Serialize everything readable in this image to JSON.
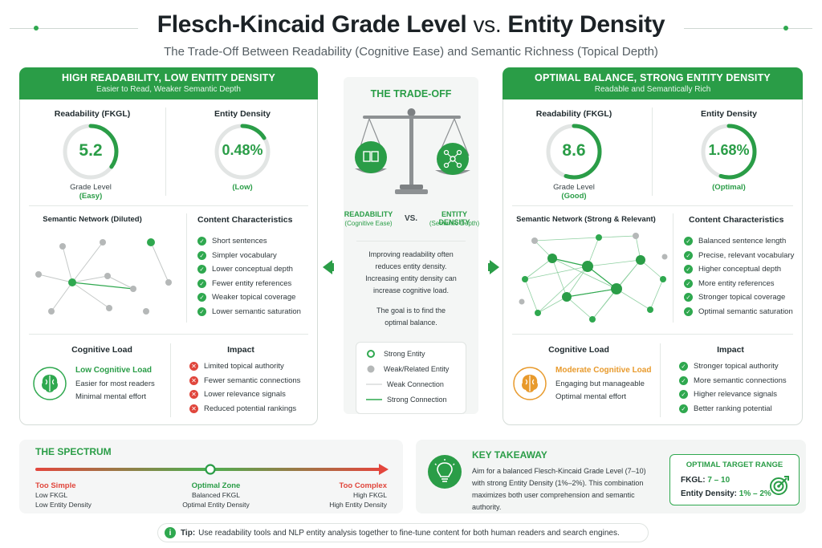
{
  "header": {
    "title_main": "Flesch-Kincaid Grade Level",
    "title_vs": "vs.",
    "title_end": "Entity Density",
    "subtitle": "The Trade-Off Between Readability (Cognitive Ease) and Semantic Richness (Topical Depth)"
  },
  "left_panel": {
    "title": "HIGH READABILITY, LOW ENTITY DENSITY",
    "subtitle": "Easier to Read, Weaker Semantic Depth",
    "readability": {
      "label": "Readability (FKGL)",
      "value": "5.2",
      "caption": "Grade Level",
      "rating": "(Easy)",
      "fill": 0.35
    },
    "density": {
      "label": "Entity Density",
      "value": "0.48%",
      "rating": "(Low)",
      "fill": 0.16
    },
    "network_title": "Semantic Network (Diluted)",
    "characteristics_title": "Content Characteristics",
    "characteristics": [
      "Short sentences",
      "Simpler vocabulary",
      "Lower conceptual depth",
      "Fewer entity references",
      "Weaker topical coverage",
      "Lower semantic saturation"
    ],
    "cognitive_title": "Cognitive Load",
    "cognitive_level": "Low Cognitive Load",
    "cognitive_lines": [
      "Easier for most readers",
      "Minimal mental effort"
    ],
    "impact_title": "Impact",
    "impact": [
      "Limited topical authority",
      "Fewer semantic connections",
      "Lower relevance signals",
      "Reduced potential rankings"
    ]
  },
  "center": {
    "title": "THE TRADE-OFF",
    "left_label": "READABILITY",
    "left_sub": "(Cognitive Ease)",
    "vs": "VS.",
    "right_label": "ENTITY DENSITY",
    "right_sub": "(Semantic Depth)",
    "text_lines": [
      "Improving readability often",
      "reduces entity density.",
      "Increasing entity density can",
      "increase cognitive load."
    ],
    "goal_lines": [
      "The goal is to find the",
      "optimal balance."
    ],
    "legend": [
      "Strong Entity",
      "Weak/Related Entity",
      "Weak Connection",
      "Strong Connection"
    ]
  },
  "right_panel": {
    "title": "OPTIMAL BALANCE, STRONG ENTITY DENSITY",
    "subtitle": "Readable and Semantically Rich",
    "readability": {
      "label": "Readability (FKGL)",
      "value": "8.6",
      "caption": "Grade Level",
      "rating": "(Good)",
      "fill": 0.55
    },
    "density": {
      "label": "Entity Density",
      "value": "1.68%",
      "rating": "(Optimal)",
      "fill": 0.55
    },
    "network_title": "Semantic Network (Strong & Relevant)",
    "characteristics_title": "Content Characteristics",
    "characteristics": [
      "Balanced sentence length",
      "Precise, relevant vocabulary",
      "Higher conceptual depth",
      "More entity references",
      "Stronger topical coverage",
      "Optimal semantic saturation"
    ],
    "cognitive_title": "Cognitive Load",
    "cognitive_level": "Moderate Cognitive Load",
    "cognitive_lines": [
      "Engaging but manageable",
      "Optimal mental effort"
    ],
    "impact_title": "Impact",
    "impact": [
      "Stronger topical authority",
      "More semantic connections",
      "Higher relevance signals",
      "Better ranking potential"
    ]
  },
  "spectrum": {
    "title": "THE SPECTRUM",
    "marker_fraction": 0.5,
    "left": {
      "title": "Too Simple",
      "lines": [
        "Low FKGL",
        "Low Entity Density"
      ]
    },
    "mid": {
      "title": "Optimal Zone",
      "lines": [
        "Balanced FKGL",
        "Optimal Entity Density"
      ]
    },
    "right": {
      "title": "Too Complex",
      "lines": [
        "High FKGL",
        "High Entity Density"
      ]
    }
  },
  "takeaway": {
    "title": "KEY TAKEAWAY",
    "lines": [
      "Aim for a balanced Flesch-Kincaid Grade Level (7–10)",
      "with strong Entity Density (1%–2%). This combination",
      "maximizes both user comprehension and semantic authority."
    ]
  },
  "target": {
    "title": "OPTIMAL TARGET RANGE",
    "fkgl_label": "FKGL:",
    "fkgl_value": "7 – 10",
    "density_label": "Entity Density:",
    "density_value": "1% – 2%"
  },
  "tip": {
    "label": "Tip:",
    "text": "Use readability tools and NLP entity analysis together to fine-tune content for both human readers and search engines."
  },
  "colors": {
    "green": "#2a9d47",
    "red": "#e0463c",
    "orange": "#e89a2c",
    "gray_node": "#b5b8b8"
  }
}
